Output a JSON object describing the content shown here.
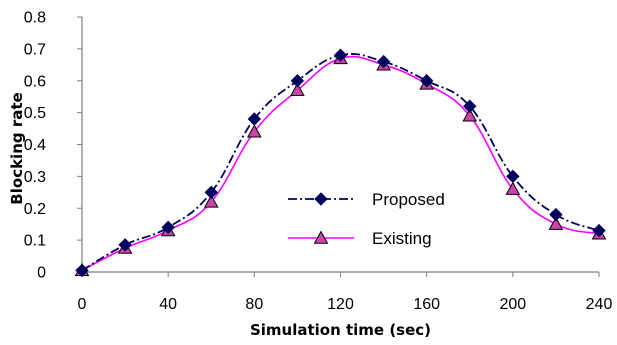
{
  "chart_data": {
    "type": "line",
    "title": "",
    "xlabel": "Simulation time (sec)",
    "ylabel": "Blocking rate",
    "x": [
      0,
      20,
      40,
      60,
      80,
      100,
      120,
      140,
      160,
      180,
      200,
      220,
      240
    ],
    "xlim": [
      0,
      240
    ],
    "ylim": [
      0,
      0.8
    ],
    "x_ticks": [
      "0",
      "40",
      "80",
      "120",
      "160",
      "200",
      "240"
    ],
    "x_tick_values": [
      0,
      40,
      80,
      120,
      160,
      200,
      240
    ],
    "y_ticks": [
      "0",
      "0.1",
      "0.2",
      "0.3",
      "0.4",
      "0.5",
      "0.6",
      "0.7",
      "0.8"
    ],
    "y_tick_values": [
      0,
      0.1,
      0.2,
      0.3,
      0.4,
      0.5,
      0.6,
      0.7,
      0.8
    ],
    "grid": false,
    "legend_position": "center-right",
    "series": [
      {
        "name": "Proposed",
        "values": [
          0.005,
          0.085,
          0.14,
          0.25,
          0.48,
          0.6,
          0.68,
          0.66,
          0.6,
          0.52,
          0.3,
          0.18,
          0.13
        ],
        "color": "#00005e",
        "marker": "diamond",
        "line_style": "dash-dot"
      },
      {
        "name": "Existing",
        "values": [
          0.005,
          0.075,
          0.13,
          0.22,
          0.44,
          0.57,
          0.67,
          0.65,
          0.59,
          0.49,
          0.26,
          0.15,
          0.12
        ],
        "color": "#ff00ff",
        "marker_fill": "#cc44aa",
        "marker": "triangle",
        "line_style": "solid"
      }
    ]
  }
}
